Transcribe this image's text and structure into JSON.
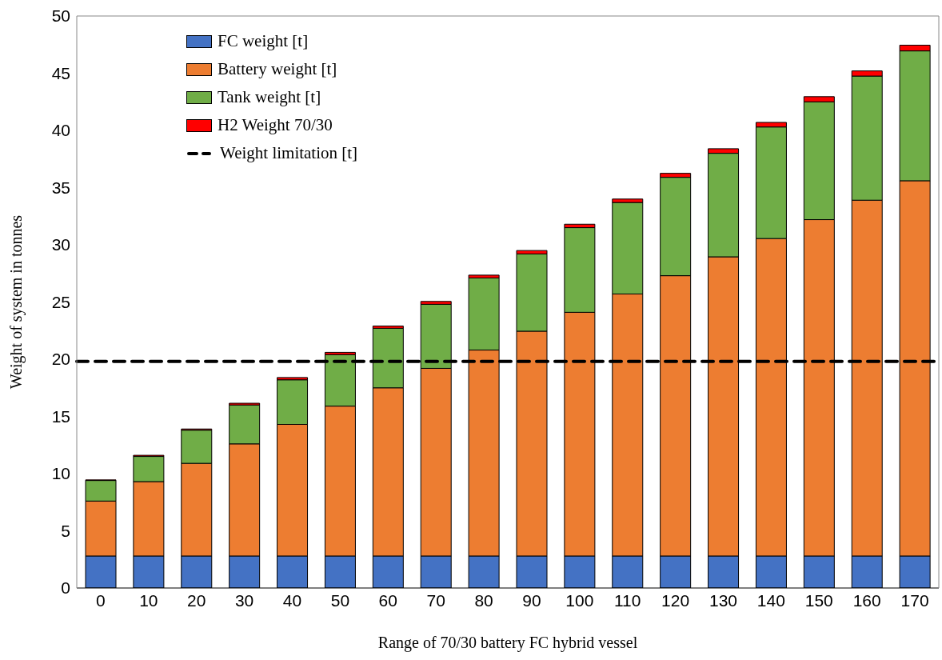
{
  "chart_data": {
    "type": "bar",
    "stacked": true,
    "xlabel": "Range of 70/30 battery FC hybrid vessel",
    "ylabel": "Weight of system in tonnes",
    "categories": [
      "0",
      "10",
      "20",
      "30",
      "40",
      "50",
      "60",
      "70",
      "80",
      "90",
      "100",
      "110",
      "120",
      "130",
      "140",
      "150",
      "160",
      "170"
    ],
    "series": [
      {
        "name": "FC weight [t]",
        "color": "#4472c4",
        "values": [
          2.8,
          2.8,
          2.8,
          2.8,
          2.8,
          2.8,
          2.8,
          2.8,
          2.8,
          2.8,
          2.8,
          2.8,
          2.8,
          2.8,
          2.8,
          2.8,
          2.8,
          2.8
        ]
      },
      {
        "name": "Battery weight [t]",
        "color": "#ed7d31",
        "values": [
          4.8,
          6.5,
          8.1,
          9.8,
          11.5,
          13.1,
          14.7,
          16.4,
          18.0,
          19.65,
          21.3,
          22.9,
          24.5,
          26.15,
          27.75,
          29.4,
          31.1,
          32.8
        ]
      },
      {
        "name": "Tank weight [t]",
        "color": "#70ad47",
        "values": [
          1.8,
          2.2,
          2.9,
          3.4,
          3.9,
          4.5,
          5.2,
          5.6,
          6.3,
          6.75,
          7.4,
          8.0,
          8.6,
          9.05,
          9.75,
          10.3,
          10.85,
          11.35
        ]
      },
      {
        "name": "H2 Weight 70/30",
        "color": "#ff0000",
        "values": [
          0.05,
          0.1,
          0.1,
          0.15,
          0.2,
          0.2,
          0.2,
          0.25,
          0.25,
          0.3,
          0.3,
          0.3,
          0.35,
          0.4,
          0.4,
          0.45,
          0.45,
          0.5
        ]
      }
    ],
    "ref_lines": [
      {
        "axis": "y",
        "value": 19.8,
        "label": "Weight limitation [t]",
        "color": "#000000",
        "line_style": "dashed"
      }
    ],
    "ylim": [
      0,
      50
    ],
    "yticks": [
      0,
      5,
      10,
      15,
      20,
      25,
      30,
      35,
      40,
      45,
      50
    ],
    "grid": false,
    "legend": "top left"
  }
}
